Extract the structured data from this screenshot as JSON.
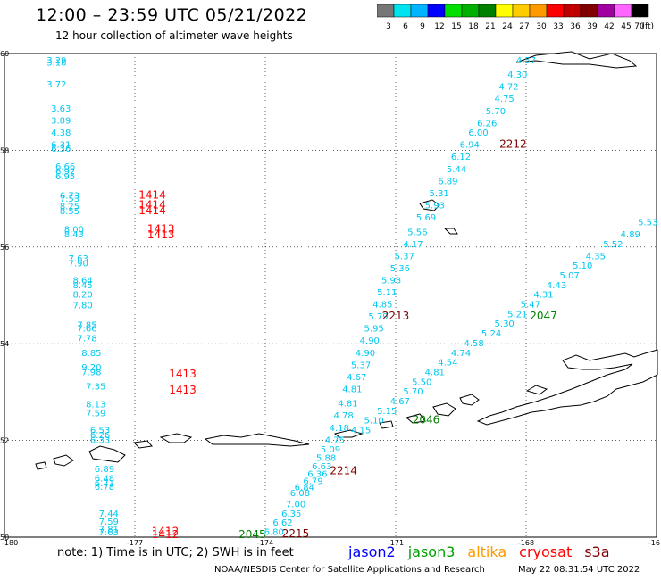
{
  "header": {
    "title": "12:00 – 23:59 UTC 05/21/2022",
    "subtitle": "12 hour collection of altimeter wave heights"
  },
  "colorbar": {
    "ticks": [
      "3",
      "6",
      "9",
      "12",
      "15",
      "18",
      "21",
      "24",
      "27",
      "30",
      "33",
      "36",
      "39",
      "42",
      "45",
      "70"
    ],
    "unit": "(ft)",
    "colors": [
      "#777777",
      "#00e4f0",
      "#00b4ff",
      "#0000ff",
      "#00e000",
      "#00b000",
      "#008000",
      "#ffff00",
      "#ffcc00",
      "#ff9900",
      "#ff0000",
      "#c00000",
      "#800000",
      "#a000a0",
      "#ff66ff",
      "#000000"
    ]
  },
  "axes": {
    "lat_labels": [
      "60",
      "58",
      "56",
      "54",
      "52",
      "50"
    ],
    "lon_labels": [
      "-180",
      "-177",
      "-174",
      "-171",
      "-168",
      "-16"
    ]
  },
  "map": {
    "xrange": [
      -180,
      -165
    ],
    "yrange": [
      50,
      60
    ],
    "track_color": "#00c8f0",
    "labels": [
      {
        "lon": -178.8,
        "lat": 59.8,
        "text": "3.29"
      },
      {
        "lon": -178.8,
        "lat": 59.75,
        "text": "3.18"
      },
      {
        "lon": -178.8,
        "lat": 59.3,
        "text": "3.72"
      },
      {
        "lon": -178.7,
        "lat": 58.8,
        "text": "3.63"
      },
      {
        "lon": -178.7,
        "lat": 58.55,
        "text": "3.89"
      },
      {
        "lon": -178.7,
        "lat": 58.3,
        "text": "4.38"
      },
      {
        "lon": -178.7,
        "lat": 58.05,
        "text": "6.31"
      },
      {
        "lon": -178.7,
        "lat": 57.97,
        "text": "6.36"
      },
      {
        "lon": -178.6,
        "lat": 57.6,
        "text": "6.66"
      },
      {
        "lon": -178.6,
        "lat": 57.5,
        "text": "6.92"
      },
      {
        "lon": -178.6,
        "lat": 57.4,
        "text": "6.95"
      },
      {
        "lon": -178.5,
        "lat": 57.0,
        "text": "6.73"
      },
      {
        "lon": -178.5,
        "lat": 56.94,
        "text": "7.53"
      },
      {
        "lon": -178.5,
        "lat": 56.78,
        "text": "8.25"
      },
      {
        "lon": -178.5,
        "lat": 56.68,
        "text": "8.55"
      },
      {
        "lon": -178.4,
        "lat": 56.3,
        "text": "8.00"
      },
      {
        "lon": -178.4,
        "lat": 56.2,
        "text": "8.43"
      },
      {
        "lon": -178.3,
        "lat": 55.7,
        "text": "7.63"
      },
      {
        "lon": -178.3,
        "lat": 55.6,
        "text": "7.90"
      },
      {
        "lon": -178.2,
        "lat": 55.25,
        "text": "8.64"
      },
      {
        "lon": -178.2,
        "lat": 55.15,
        "text": "8.45"
      },
      {
        "lon": -178.2,
        "lat": 54.95,
        "text": "8.20"
      },
      {
        "lon": -178.2,
        "lat": 54.73,
        "text": "7.80"
      },
      {
        "lon": -178.1,
        "lat": 54.33,
        "text": "7.85"
      },
      {
        "lon": -178.1,
        "lat": 54.25,
        "text": "7.66"
      },
      {
        "lon": -178.1,
        "lat": 54.05,
        "text": "7.78"
      },
      {
        "lon": -178.0,
        "lat": 53.75,
        "text": "8.85"
      },
      {
        "lon": -178.0,
        "lat": 53.45,
        "text": "9.20"
      },
      {
        "lon": -178.0,
        "lat": 53.35,
        "text": "7.98"
      },
      {
        "lon": -177.9,
        "lat": 53.05,
        "text": "7.35"
      },
      {
        "lon": -177.9,
        "lat": 52.68,
        "text": "8.13"
      },
      {
        "lon": -177.9,
        "lat": 52.5,
        "text": "7.59"
      },
      {
        "lon": -177.8,
        "lat": 52.15,
        "text": "6.53"
      },
      {
        "lon": -177.8,
        "lat": 52.05,
        "text": "6.26"
      },
      {
        "lon": -177.8,
        "lat": 51.95,
        "text": "6.33"
      },
      {
        "lon": -177.7,
        "lat": 51.35,
        "text": "6.89"
      },
      {
        "lon": -177.7,
        "lat": 51.15,
        "text": "6.48"
      },
      {
        "lon": -177.7,
        "lat": 51.05,
        "text": "6.73"
      },
      {
        "lon": -177.7,
        "lat": 50.98,
        "text": "6.78"
      },
      {
        "lon": -177.6,
        "lat": 50.42,
        "text": "7.44"
      },
      {
        "lon": -177.6,
        "lat": 50.26,
        "text": "7.59"
      },
      {
        "lon": -177.6,
        "lat": 50.1,
        "text": "7.81"
      },
      {
        "lon": -177.6,
        "lat": 50.04,
        "text": "7.63"
      },
      {
        "lon": -168.0,
        "lat": 59.8,
        "text": "4.57"
      },
      {
        "lon": -168.2,
        "lat": 59.5,
        "text": "4.30"
      },
      {
        "lon": -168.4,
        "lat": 59.25,
        "text": "4.72"
      },
      {
        "lon": -168.5,
        "lat": 59.0,
        "text": "4.75"
      },
      {
        "lon": -168.7,
        "lat": 58.75,
        "text": "5.70"
      },
      {
        "lon": -168.9,
        "lat": 58.5,
        "text": "6.26"
      },
      {
        "lon": -169.1,
        "lat": 58.3,
        "text": "6.00"
      },
      {
        "lon": -169.3,
        "lat": 58.05,
        "text": "6.94"
      },
      {
        "lon": -169.5,
        "lat": 57.8,
        "text": "6.12"
      },
      {
        "lon": -169.6,
        "lat": 57.55,
        "text": "5.44"
      },
      {
        "lon": -169.8,
        "lat": 57.3,
        "text": "6.89"
      },
      {
        "lon": -170.0,
        "lat": 57.05,
        "text": "5.31"
      },
      {
        "lon": -170.1,
        "lat": 56.8,
        "text": "5.93"
      },
      {
        "lon": -170.3,
        "lat": 56.55,
        "text": "5.69"
      },
      {
        "lon": -170.5,
        "lat": 56.25,
        "text": "5.56"
      },
      {
        "lon": -170.6,
        "lat": 56.0,
        "text": "4.17"
      },
      {
        "lon": -170.8,
        "lat": 55.75,
        "text": "5.37"
      },
      {
        "lon": -170.9,
        "lat": 55.5,
        "text": "5.36"
      },
      {
        "lon": -171.1,
        "lat": 55.25,
        "text": "5.93"
      },
      {
        "lon": -171.2,
        "lat": 55.0,
        "text": "5.11"
      },
      {
        "lon": -171.3,
        "lat": 54.75,
        "text": "4.85"
      },
      {
        "lon": -171.4,
        "lat": 54.5,
        "text": "5.79"
      },
      {
        "lon": -171.5,
        "lat": 54.25,
        "text": "5.95"
      },
      {
        "lon": -171.6,
        "lat": 54.0,
        "text": "4.90"
      },
      {
        "lon": -171.7,
        "lat": 53.75,
        "text": "4.90"
      },
      {
        "lon": -171.8,
        "lat": 53.5,
        "text": "5.37"
      },
      {
        "lon": -171.9,
        "lat": 53.25,
        "text": "4.67"
      },
      {
        "lon": -172.0,
        "lat": 53.0,
        "text": "4.81"
      },
      {
        "lon": -172.1,
        "lat": 52.7,
        "text": "4.81"
      },
      {
        "lon": -172.2,
        "lat": 52.45,
        "text": "4.78"
      },
      {
        "lon": -172.3,
        "lat": 52.2,
        "text": "4.18"
      },
      {
        "lon": -172.4,
        "lat": 51.95,
        "text": "4.75"
      },
      {
        "lon": -172.5,
        "lat": 51.75,
        "text": "5.09"
      },
      {
        "lon": -172.6,
        "lat": 51.58,
        "text": "5.88"
      },
      {
        "lon": -172.7,
        "lat": 51.4,
        "text": "6.63"
      },
      {
        "lon": -172.8,
        "lat": 51.25,
        "text": "6.36"
      },
      {
        "lon": -172.9,
        "lat": 51.1,
        "text": "6.79"
      },
      {
        "lon": -173.1,
        "lat": 50.97,
        "text": "6.84"
      },
      {
        "lon": -173.2,
        "lat": 50.85,
        "text": "6.08"
      },
      {
        "lon": -173.3,
        "lat": 50.62,
        "text": "7.00"
      },
      {
        "lon": -173.4,
        "lat": 50.42,
        "text": "6.35"
      },
      {
        "lon": -173.6,
        "lat": 50.24,
        "text": "6.62"
      },
      {
        "lon": -173.8,
        "lat": 50.05,
        "text": "6.80"
      },
      {
        "lon": -165.2,
        "lat": 56.45,
        "text": "5.53"
      },
      {
        "lon": -165.6,
        "lat": 56.2,
        "text": "4.89"
      },
      {
        "lon": -166.0,
        "lat": 56.0,
        "text": "5.52"
      },
      {
        "lon": -166.4,
        "lat": 55.75,
        "text": "4.35"
      },
      {
        "lon": -166.7,
        "lat": 55.55,
        "text": "5.10"
      },
      {
        "lon": -167.0,
        "lat": 55.35,
        "text": "5.07"
      },
      {
        "lon": -167.3,
        "lat": 55.15,
        "text": "4.43"
      },
      {
        "lon": -167.6,
        "lat": 54.95,
        "text": "4.31"
      },
      {
        "lon": -167.9,
        "lat": 54.75,
        "text": "5.47"
      },
      {
        "lon": -168.2,
        "lat": 54.55,
        "text": "5.21"
      },
      {
        "lon": -168.5,
        "lat": 54.35,
        "text": "5.30"
      },
      {
        "lon": -168.8,
        "lat": 54.15,
        "text": "5.24"
      },
      {
        "lon": -169.2,
        "lat": 53.95,
        "text": "4.58"
      },
      {
        "lon": -169.5,
        "lat": 53.75,
        "text": "4.74"
      },
      {
        "lon": -169.8,
        "lat": 53.55,
        "text": "4.54"
      },
      {
        "lon": -170.1,
        "lat": 53.35,
        "text": "4.81"
      },
      {
        "lon": -170.4,
        "lat": 53.15,
        "text": "5.50"
      },
      {
        "lon": -170.6,
        "lat": 52.95,
        "text": "5.70"
      },
      {
        "lon": -170.9,
        "lat": 52.75,
        "text": "4.67"
      },
      {
        "lon": -171.2,
        "lat": 52.55,
        "text": "5.15"
      },
      {
        "lon": -171.5,
        "lat": 52.35,
        "text": "5.10"
      },
      {
        "lon": -171.8,
        "lat": 52.15,
        "text": "4.15"
      }
    ],
    "pass_labels": [
      {
        "lon": -176.6,
        "lat": 57.0,
        "text": "1414",
        "color": "#ff0000"
      },
      {
        "lon": -176.6,
        "lat": 56.8,
        "text": "1414",
        "color": "#ff0000"
      },
      {
        "lon": -176.6,
        "lat": 56.68,
        "text": "1414",
        "color": "#ff0000"
      },
      {
        "lon": -176.4,
        "lat": 56.3,
        "text": "1413",
        "color": "#ff0000"
      },
      {
        "lon": -176.4,
        "lat": 56.18,
        "text": "1413",
        "color": "#ff0000"
      },
      {
        "lon": -175.9,
        "lat": 53.3,
        "text": "1413",
        "color": "#ff0000"
      },
      {
        "lon": -175.9,
        "lat": 52.97,
        "text": "1413",
        "color": "#ff0000"
      },
      {
        "lon": -176.3,
        "lat": 50.05,
        "text": "1412",
        "color": "#ff0000"
      },
      {
        "lon": -176.3,
        "lat": 49.98,
        "text": "1412",
        "color": "#ff0000"
      },
      {
        "lon": -168.3,
        "lat": 58.05,
        "text": "2212",
        "color": "#800000"
      },
      {
        "lon": -171.0,
        "lat": 54.5,
        "text": "2213",
        "color": "#800000"
      },
      {
        "lon": -172.2,
        "lat": 51.3,
        "text": "2214",
        "color": "#800000"
      },
      {
        "lon": -173.3,
        "lat": 50.0,
        "text": "2215",
        "color": "#800000"
      },
      {
        "lon": -167.6,
        "lat": 54.5,
        "text": "2047",
        "color": "#008000"
      },
      {
        "lon": -170.3,
        "lat": 52.35,
        "text": "2046",
        "color": "#008000"
      },
      {
        "lon": -174.3,
        "lat": 49.98,
        "text": "2045",
        "color": "#008000"
      }
    ]
  },
  "footer": {
    "note": "note:  1) Time is in UTC;  2) SWH is in feet",
    "satellites": [
      {
        "name": "jason2",
        "color": "#0000ff"
      },
      {
        "name": "jason3",
        "color": "#00a000"
      },
      {
        "name": "altika",
        "color": "#ff9900"
      },
      {
        "name": "cryosat",
        "color": "#ff0000"
      },
      {
        "name": "s3a",
        "color": "#800000"
      }
    ],
    "credit": "NOAA/NESDIS Center for Satellite Applications and Research",
    "timestamp": "May 22 08:31:54 UTC 2022"
  }
}
